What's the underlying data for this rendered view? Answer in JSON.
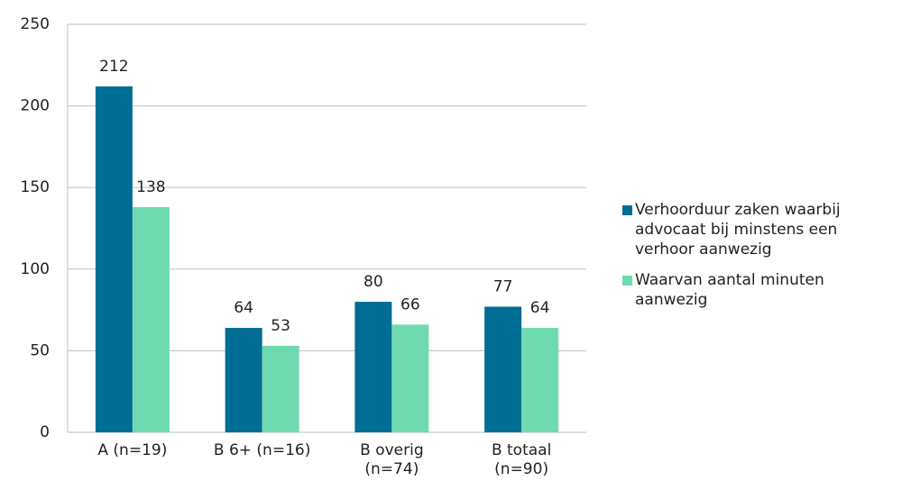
{
  "chart_data": {
    "type": "bar",
    "categories": [
      "A (n=19)",
      "B 6+ (n=16)",
      "B overig (n=74)",
      "B totaal (n=90)"
    ],
    "series": [
      {
        "name": "Verhoorduur zaken waarbij advocaat bij minstens een verhoor aanwezig",
        "color": "#006d94",
        "values": [
          212,
          64,
          80,
          77
        ]
      },
      {
        "name": "Waarvan aantal minuten aanwezig",
        "color": "#6fdab0",
        "values": [
          138,
          53,
          66,
          64
        ]
      }
    ],
    "ylim": [
      0,
      250
    ],
    "yticks": [
      0,
      50,
      100,
      150,
      200,
      250
    ],
    "grid": true,
    "legend": "right"
  }
}
